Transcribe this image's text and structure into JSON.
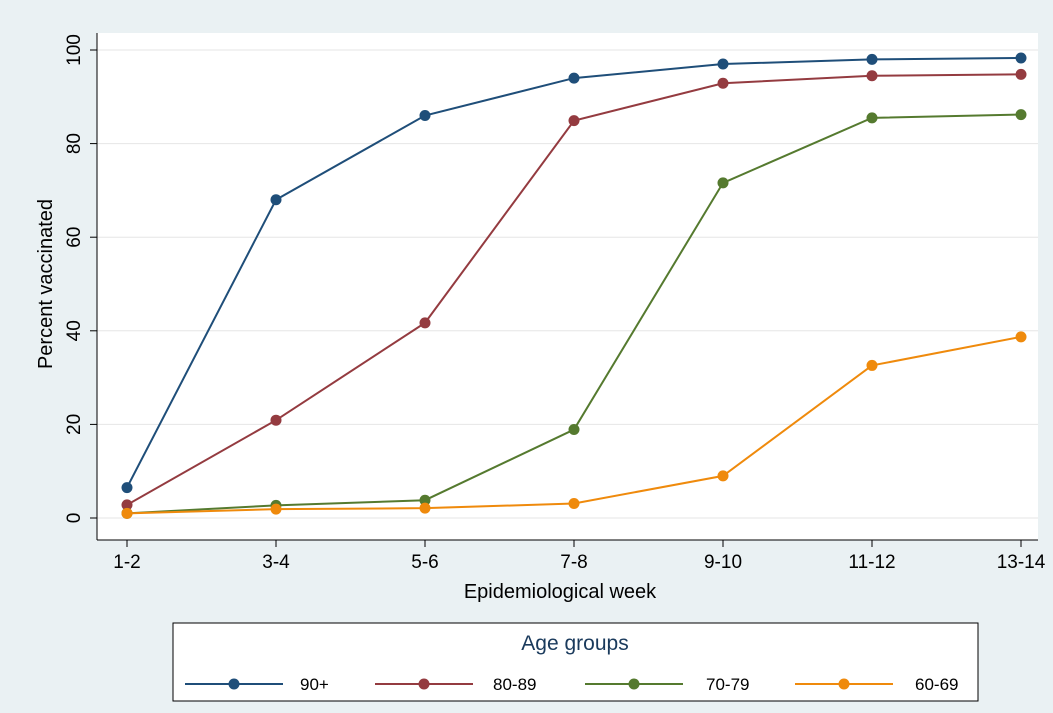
{
  "chart_data": {
    "type": "line",
    "title": "",
    "xlabel": "Epidemiological week",
    "ylabel": "Percent vaccinated",
    "categories": [
      "1-2",
      "3-4",
      "5-6",
      "7-8",
      "9-10",
      "11-12",
      "13-14"
    ],
    "ylim": [
      0,
      100
    ],
    "yticks": [
      0,
      20,
      40,
      60,
      80,
      100
    ],
    "grid": true,
    "legend": {
      "title": "Age groups",
      "placement": "bottom"
    },
    "series": [
      {
        "name": "90+",
        "color": "#1f4e79",
        "values": [
          6.5,
          68,
          86,
          94,
          97,
          98,
          98.3
        ]
      },
      {
        "name": "80-89",
        "color": "#943b40",
        "values": [
          2.8,
          20.9,
          41.7,
          84.9,
          92.9,
          94.5,
          94.8
        ]
      },
      {
        "name": "70-79",
        "color": "#557a2f",
        "values": [
          1,
          2.7,
          3.8,
          18.9,
          71.6,
          85.5,
          86.2
        ]
      },
      {
        "name": "60-69",
        "color": "#ef8a0c",
        "values": [
          1,
          1.9,
          2.1,
          3.1,
          9,
          32.6,
          38.7
        ]
      }
    ]
  }
}
